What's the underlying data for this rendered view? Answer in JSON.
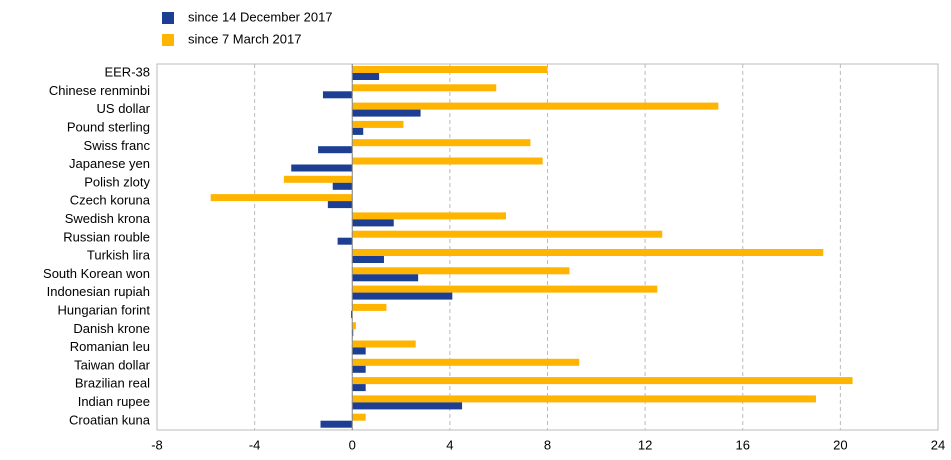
{
  "chart_data": {
    "type": "hbar",
    "categories": [
      "EER-38",
      "Chinese renminbi",
      "US dollar",
      "Pound sterling",
      "Swiss franc",
      "Japanese yen",
      "Polish zloty",
      "Czech koruna",
      "Swedish krona",
      "Russian rouble",
      "Turkish lira",
      "South Korean won",
      "Indonesian rupiah",
      "Hungarian forint",
      "Danish krone",
      "Romanian leu",
      "Taiwan dollar",
      "Brazilian real",
      "Indian rupee",
      "Croatian kuna"
    ],
    "series": [
      {
        "name": "since 14 December 2017",
        "color": "#1c3f94",
        "values": [
          1.1,
          -1.2,
          2.8,
          0.45,
          -1.4,
          -2.5,
          -0.8,
          -1.0,
          1.7,
          -0.6,
          1.3,
          2.7,
          4.1,
          -0.05,
          0.02,
          0.55,
          0.55,
          0.55,
          4.5,
          -1.3
        ]
      },
      {
        "name": "since 7 March 2017",
        "color": "#ffb400",
        "values": [
          8.0,
          5.9,
          15.0,
          2.1,
          7.3,
          7.8,
          -2.8,
          -5.8,
          6.3,
          12.7,
          19.3,
          8.9,
          12.5,
          1.4,
          0.15,
          2.6,
          9.3,
          20.5,
          19.0,
          0.55
        ]
      }
    ],
    "xlim": [
      -8,
      24
    ],
    "xticks": [
      -8,
      -4,
      0,
      4,
      8,
      12,
      16,
      20,
      24
    ],
    "grid": true
  }
}
